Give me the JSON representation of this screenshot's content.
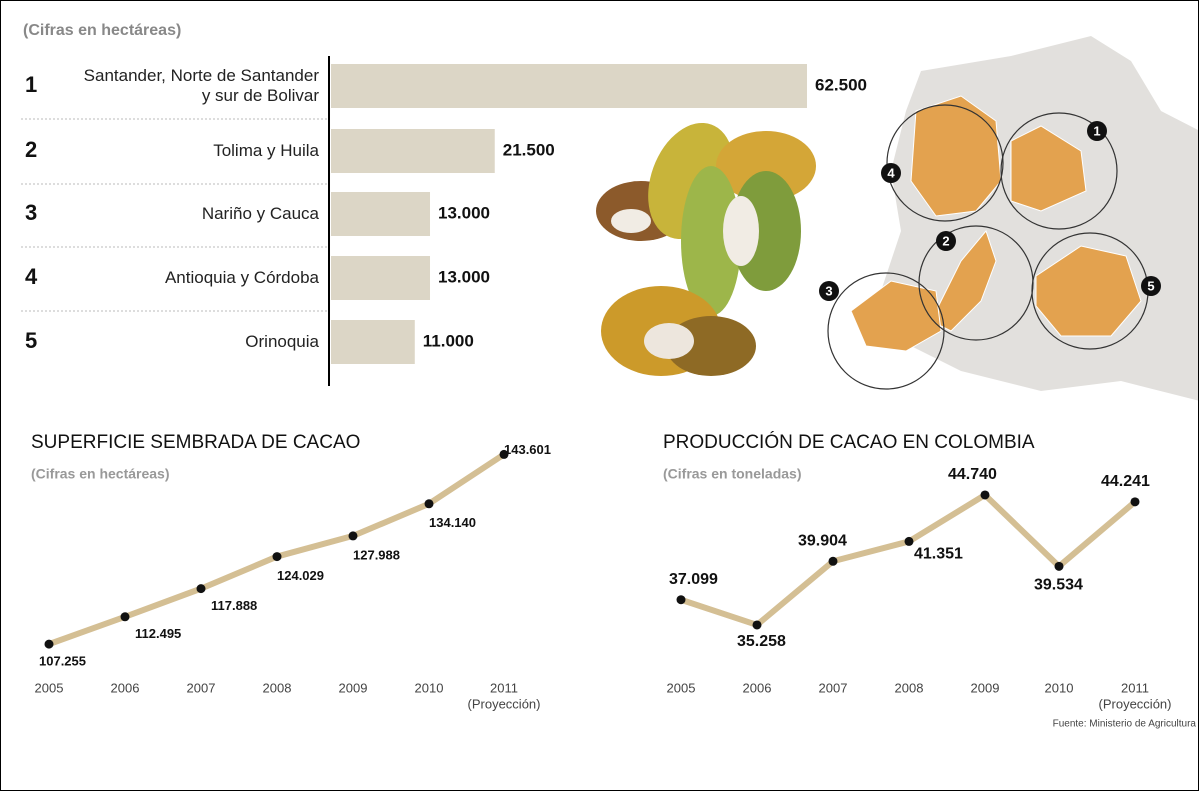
{
  "chart_data": [
    {
      "type": "bar",
      "subtitle": "(Cifras en hectáreas)",
      "ranks": [
        1,
        2,
        3,
        4,
        5
      ],
      "categories": [
        "Santander, Norte de Santander y sur de Bolivar",
        "Tolima y Huila",
        "Nariño y Cauca",
        "Antioquia y Córdoba",
        "Orinoquia"
      ],
      "values": [
        62500,
        21500,
        13000,
        13000,
        11000
      ],
      "value_labels": [
        "62.500",
        "21.500",
        "13.000",
        "13.000",
        "11.000"
      ],
      "color": "#dcd6c6",
      "xlim": [
        0,
        62500
      ]
    },
    {
      "type": "line",
      "title": "SUPERFICIE SEMBRADA DE CACAO",
      "subtitle": "(Cifras en hectáreas)",
      "categories": [
        "2005",
        "2006",
        "2007",
        "2008",
        "2009",
        "2010",
        "2011"
      ],
      "annotation": "(Proyección)",
      "values": [
        107255,
        112495,
        117888,
        124029,
        127988,
        134140,
        143601
      ],
      "value_labels": [
        "107.255",
        "112.495",
        "117.888",
        "124.029",
        "127.988",
        "134.140",
        "143.601"
      ],
      "color": "#d4bf94",
      "ylim": [
        100000,
        150000
      ]
    },
    {
      "type": "line",
      "title": "PRODUCCIÓN DE CACAO EN COLOMBIA",
      "subtitle": "(Cifras en toneladas)",
      "categories": [
        "2005",
        "2006",
        "2007",
        "2008",
        "2009",
        "2010",
        "2011"
      ],
      "annotation": "(Proyección)",
      "values": [
        37099,
        35258,
        39904,
        41351,
        44740,
        39534,
        44241
      ],
      "value_labels": [
        "37.099",
        "35.258",
        "39.904",
        "41.351",
        "44.740",
        "39.534",
        "44.241"
      ],
      "color": "#d4bf94",
      "ylim": [
        34000,
        46000
      ]
    }
  ],
  "map_labels": [
    "1",
    "2",
    "3",
    "4",
    "5"
  ],
  "source": "Fuente: Ministerio de Agricultura"
}
